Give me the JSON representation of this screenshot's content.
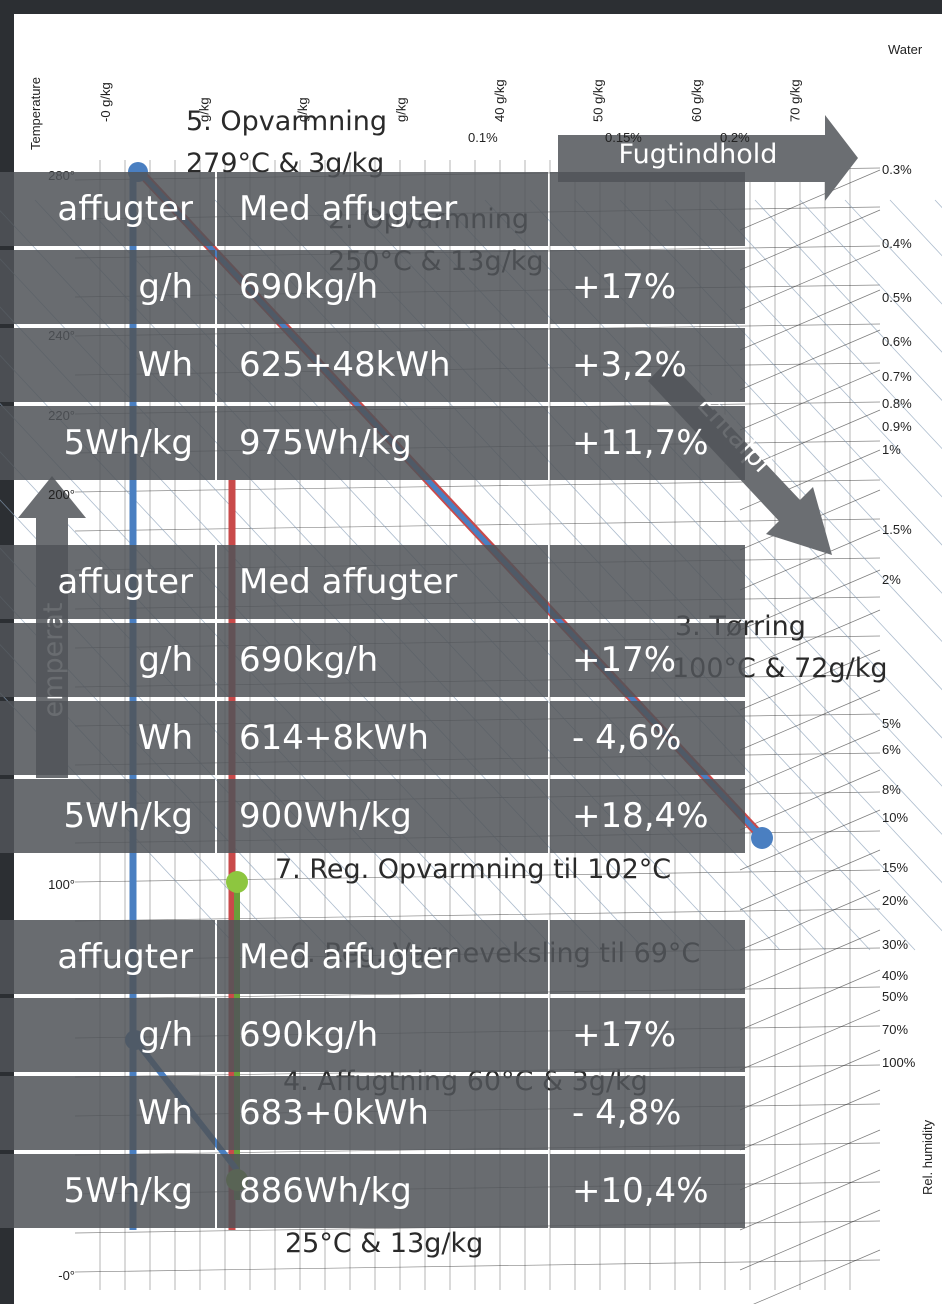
{
  "axis": {
    "temperature_title": "Temperature",
    "water_title": "Water",
    "humidity_title": "Rel. humidity",
    "moisture_labels": [
      "-0 g/kg",
      "g/kg",
      "g/kg",
      "g/kg",
      "40 g/kg",
      "50 g/kg",
      "60 g/kg",
      "70 g/kg"
    ],
    "temperature_labels": [
      "280°",
      "240°",
      "220°",
      "200°",
      "100°",
      "-0°"
    ],
    "saturation_labels": [
      "0.1%",
      "0.15%",
      "0.2%"
    ],
    "humidity_labels": [
      "0.3%",
      "0.4%",
      "0.5%",
      "0.6%",
      "0.7%",
      "0.8%",
      "0.9%",
      "1%",
      "1.5%",
      "2%",
      "5%",
      "6%",
      "8%",
      "10%",
      "15%",
      "20%",
      "30%",
      "40%",
      "50%",
      "70%",
      "100%"
    ]
  },
  "annotations": [
    [
      "5. Opvarmning",
      "279°C & 3g/kg"
    ],
    [
      "2. Opvarmning",
      "250°C & 13g/kg"
    ],
    [
      "3. Tørring",
      "100°C & 72g/kg"
    ],
    [
      "7. Reg. Opvarmning til 102°C"
    ],
    [
      "6. Reg. Varmeveksling til 69°C"
    ],
    [
      "4. Affugtning 60°C & 3g/kg"
    ],
    [
      "25°C & 13g/kg"
    ]
  ],
  "arrows": {
    "moisture": "Fugtindhold",
    "enthalpy": "Entalpi",
    "temperature": "emperat"
  },
  "tables": [
    {
      "header": [
        "affugter",
        "Med affugter"
      ],
      "rows": [
        [
          "g/h",
          "690kg/h",
          "+17%"
        ],
        [
          "Wh",
          "625+48kWh",
          "+3,2%"
        ],
        [
          "5Wh/kg",
          "975Wh/kg",
          "+11,7%"
        ]
      ]
    },
    {
      "header": [
        "affugter",
        "Med affugter"
      ],
      "rows": [
        [
          "g/h",
          "690kg/h",
          "+17%"
        ],
        [
          "Wh",
          "614+8kWh",
          "- 4,6%"
        ],
        [
          "5Wh/kg",
          "900Wh/kg",
          "+18,4%"
        ]
      ]
    },
    {
      "header": [
        "affugter",
        "Med affugter"
      ],
      "rows": [
        [
          "g/h",
          "690kg/h",
          "+17%"
        ],
        [
          "Wh",
          "683+0kWh",
          "- 4,8%"
        ],
        [
          "5Wh/kg",
          "886Wh/kg",
          "+10,4%"
        ]
      ]
    }
  ]
}
